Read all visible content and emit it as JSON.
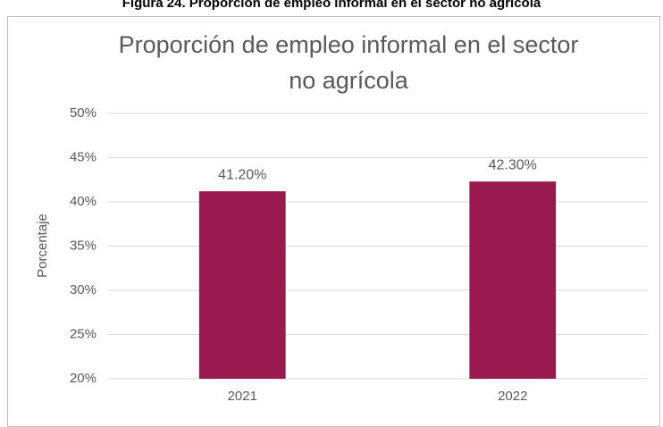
{
  "caption": "Figura 24. Proporción de empleo informal en el sector no agrícola",
  "chart_data": {
    "type": "bar",
    "title": "Proporción de empleo informal en el sector no agrícola",
    "y_label": "Porcentaje",
    "categories": [
      "2021",
      "2022"
    ],
    "values": [
      41.2,
      42.3
    ],
    "value_labels": [
      "41.20%",
      "42.30%"
    ],
    "color": "#991a4f",
    "ylim": [
      20,
      50
    ],
    "yticks": [
      {
        "value": 20,
        "label": "20%"
      },
      {
        "value": 25,
        "label": "25%"
      },
      {
        "value": 30,
        "label": "30%"
      },
      {
        "value": 35,
        "label": "35%"
      },
      {
        "value": 40,
        "label": "40%"
      },
      {
        "value": 45,
        "label": "45%"
      },
      {
        "value": 50,
        "label": "50%"
      }
    ],
    "grid": true
  }
}
